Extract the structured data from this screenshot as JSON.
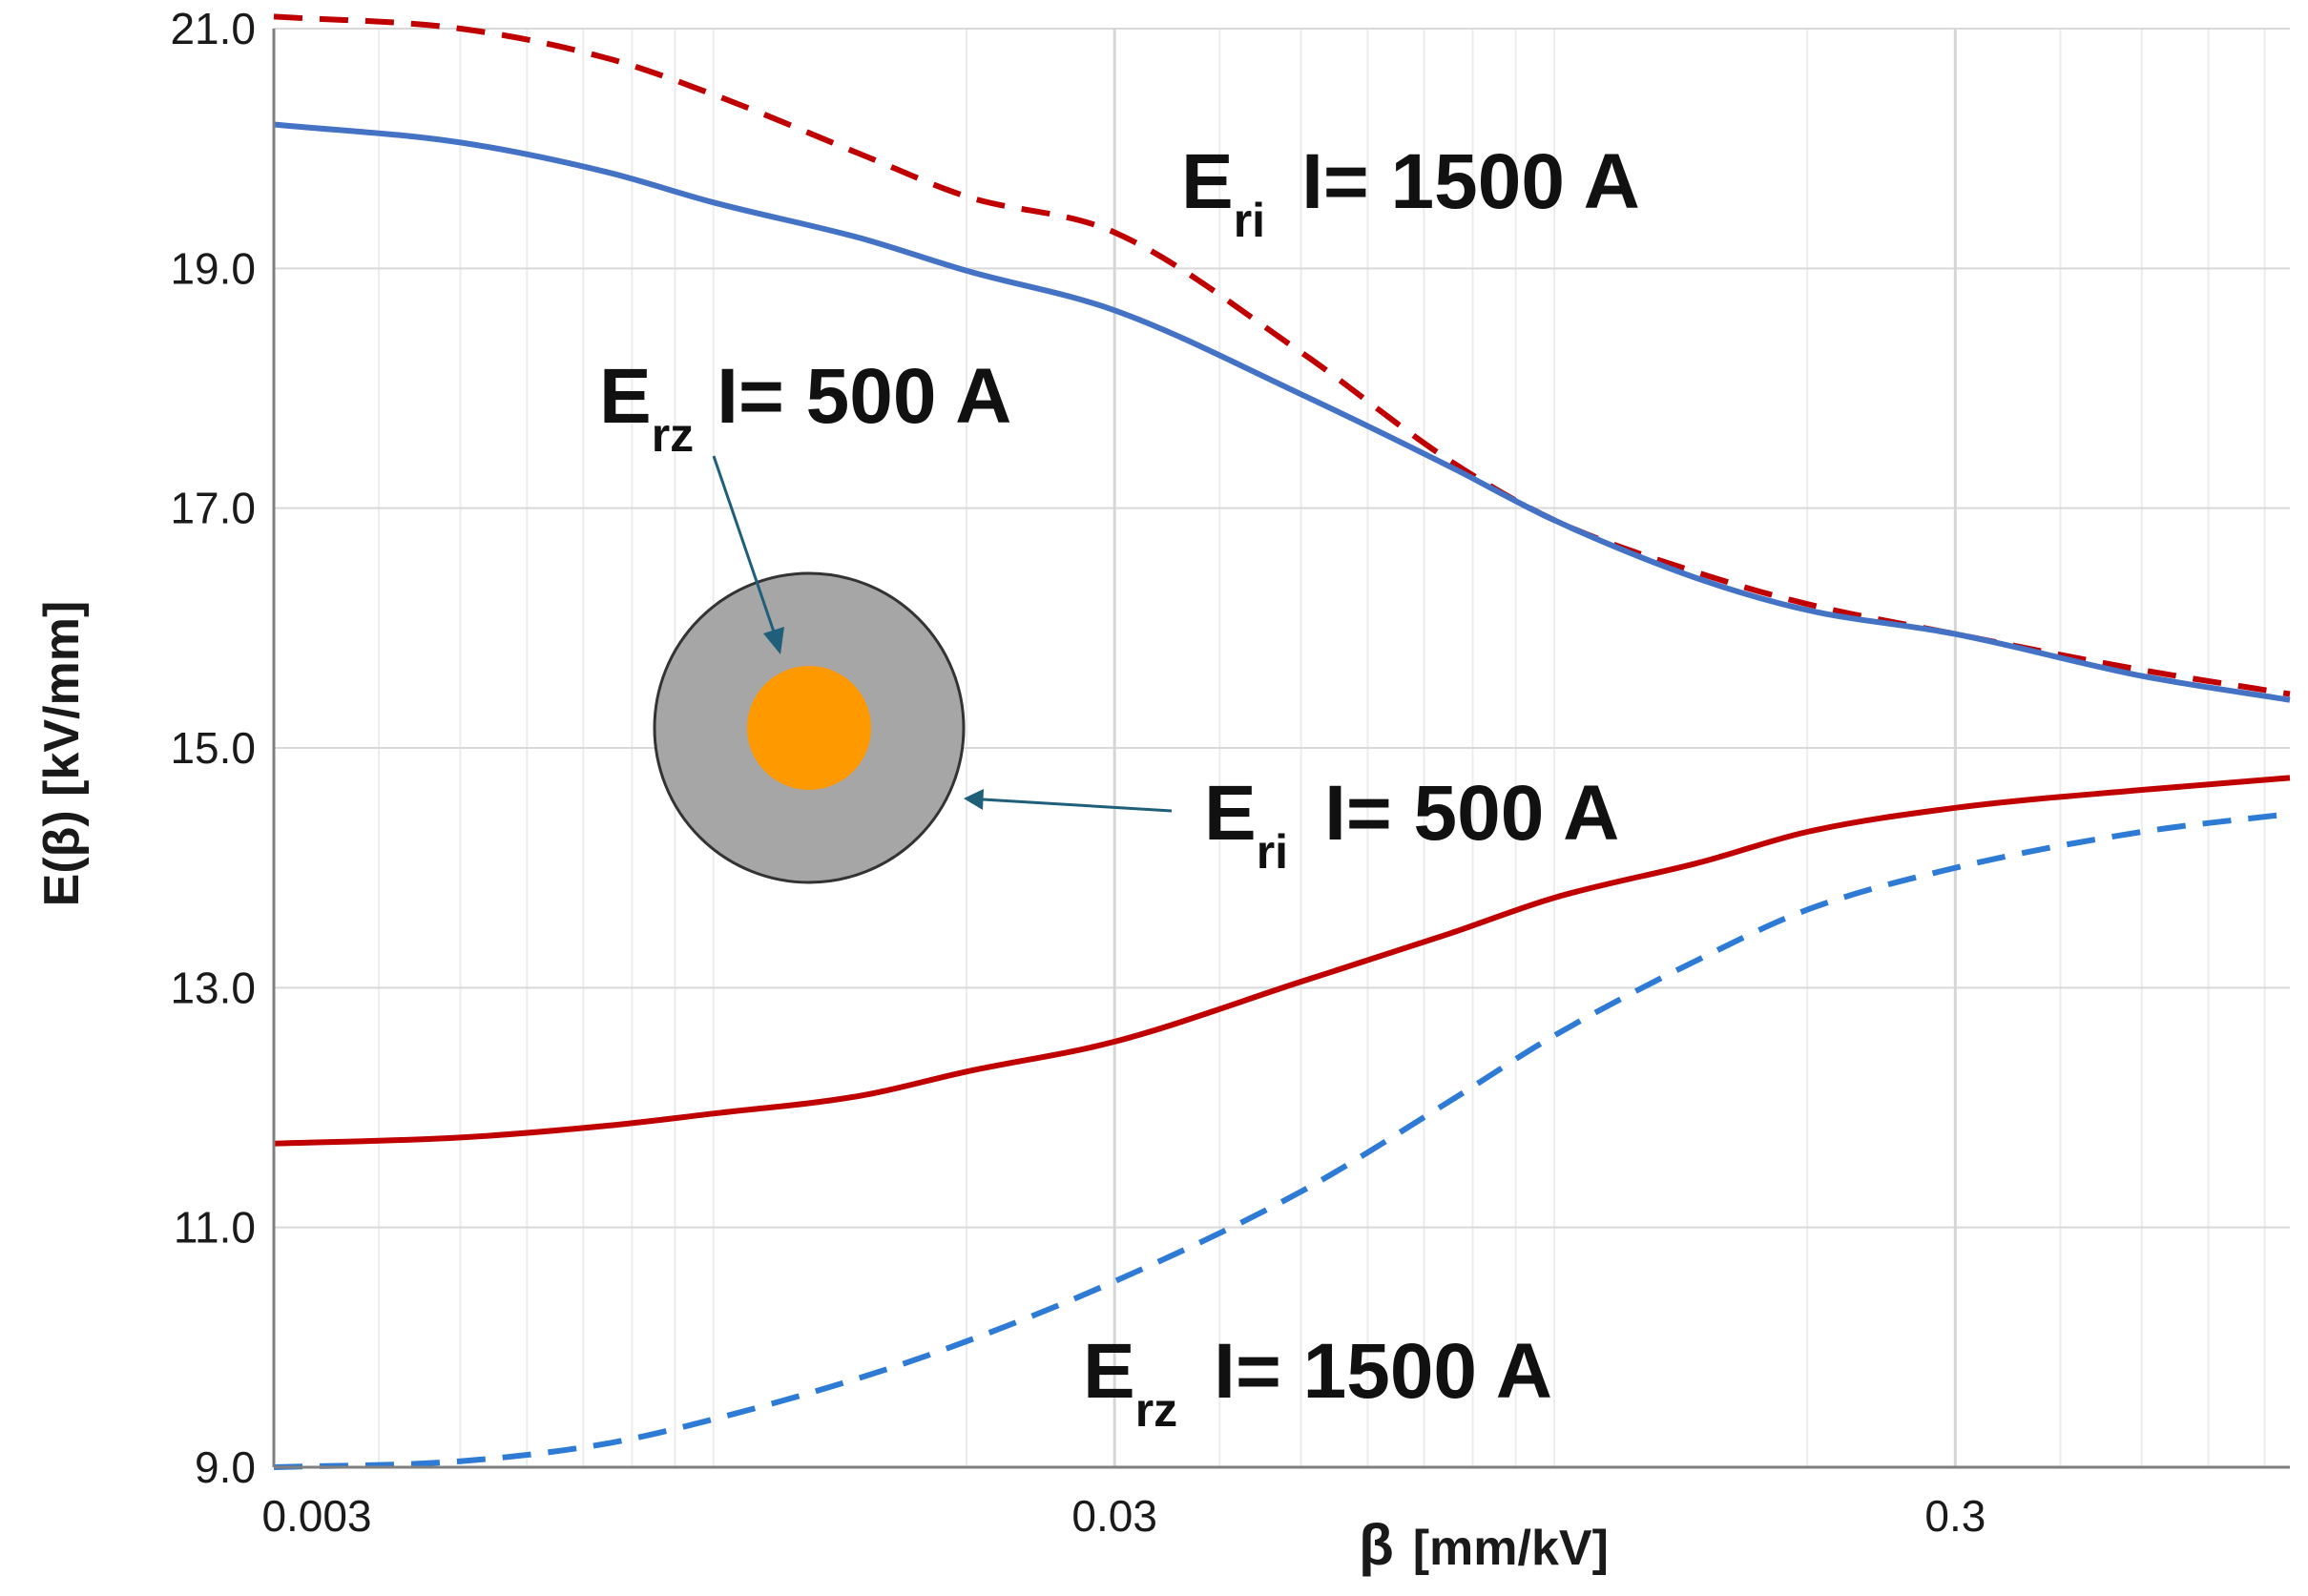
{
  "chart_data": {
    "type": "line",
    "title": "",
    "xlabel_symbol": "β",
    "xlabel_unit": "[mm/kV]",
    "ylabel": "E(β) [kV/mm]",
    "xscale": "log",
    "xlim": [
      0.003,
      0.75
    ],
    "ylim": [
      9.0,
      21.0
    ],
    "x_ticks": [
      0.003,
      0.03,
      0.3
    ],
    "x_tick_labels": [
      "0.003",
      "0.03",
      "0.3"
    ],
    "y_ticks": [
      9.0,
      11.0,
      13.0,
      15.0,
      17.0,
      19.0,
      21.0
    ],
    "y_tick_labels": [
      "9.0",
      "11.0",
      "13.0",
      "15.0",
      "17.0",
      "19.0",
      "21.0"
    ],
    "grid": true,
    "x": [
      0.003,
      0.005,
      0.0075,
      0.01,
      0.015,
      0.02,
      0.03,
      0.05,
      0.075,
      0.1,
      0.15,
      0.2,
      0.3,
      0.5,
      0.75
    ],
    "series": [
      {
        "name": "Eri I=1500 A",
        "style": "dashed",
        "color": "#c00000",
        "values": [
          21.1,
          21.0,
          20.75,
          20.45,
          19.95,
          19.6,
          19.3,
          18.3,
          17.4,
          16.9,
          16.45,
          16.2,
          15.95,
          15.65,
          15.45
        ]
      },
      {
        "name": "Erz I=500 A",
        "style": "solid",
        "color": "#4472c4",
        "values": [
          20.2,
          20.05,
          19.8,
          19.55,
          19.25,
          18.98,
          18.65,
          17.95,
          17.35,
          16.9,
          16.4,
          16.15,
          15.95,
          15.6,
          15.4
        ]
      },
      {
        "name": "Eri I=500 A",
        "style": "solid",
        "color": "#c00000",
        "values": [
          11.7,
          11.75,
          11.85,
          11.95,
          12.1,
          12.3,
          12.55,
          13.05,
          13.45,
          13.75,
          14.05,
          14.3,
          14.5,
          14.65,
          14.75
        ]
      },
      {
        "name": "Erz I=1500 A",
        "style": "dashed",
        "color": "#2e7bd6",
        "values": [
          9.0,
          9.05,
          9.2,
          9.4,
          9.75,
          10.05,
          10.55,
          11.3,
          12.05,
          12.6,
          13.25,
          13.65,
          14.0,
          14.3,
          14.45
        ]
      }
    ],
    "annotations": [
      {
        "main": "E",
        "sub": "ri",
        "text": "I= 1500 A"
      },
      {
        "main": "E",
        "sub": "rz",
        "text": "I= 500 A"
      },
      {
        "main": "E",
        "sub": "ri",
        "text": "I= 500 A"
      },
      {
        "main": "E",
        "sub": "rz",
        "text": "I= 1500 A"
      }
    ],
    "inset": {
      "outer_color": "#a6a6a6",
      "inner_color": "#ff9900",
      "border_color": "#333333",
      "arrow_color": "#1f5f7a"
    }
  }
}
